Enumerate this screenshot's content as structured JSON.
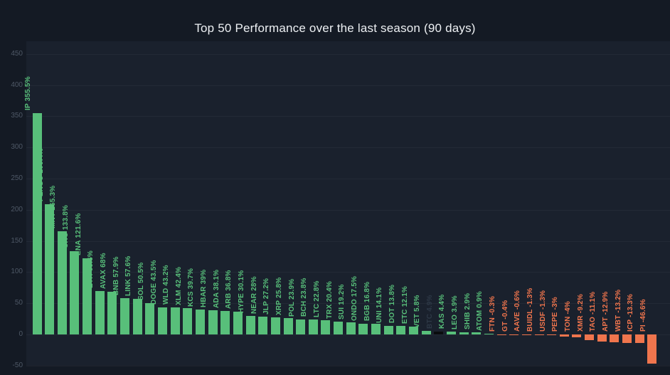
{
  "chart_data": {
    "type": "bar",
    "title": "Top 50 Performance over the last season (90 days)",
    "xlabel": "",
    "ylabel": "",
    "unit": "%",
    "ylim": [
      -50,
      450
    ],
    "yticks": [
      450,
      400,
      350,
      300,
      250,
      200,
      150,
      100,
      50,
      0,
      -50
    ],
    "grid": "horizontal-faint",
    "legend": "none",
    "palette": {
      "positive": "#58bf7a",
      "negative": "#f0754d",
      "btc_bar": "#0a0c0e",
      "btc_label": "#2d3846",
      "axis_label": "#4e5866",
      "title": "#edf0f3",
      "background_outer": "#141a24",
      "background_plot": "#1a212d"
    },
    "bars": [
      {
        "symbol": "IP",
        "value": 355.5
      },
      {
        "symbol": "PENGU",
        "value": 209.4
      },
      {
        "symbol": "MNT",
        "value": 165.3
      },
      {
        "symbol": "CRO",
        "value": 133.8
      },
      {
        "symbol": "ENA",
        "value": 121.6
      },
      {
        "symbol": "ETH",
        "value": 69.6
      },
      {
        "symbol": "AVAX",
        "value": 68
      },
      {
        "symbol": "BNB",
        "value": 57.9
      },
      {
        "symbol": "LINK",
        "value": 57.6
      },
      {
        "symbol": "SOL",
        "value": 50.5
      },
      {
        "symbol": "DOGE",
        "value": 43.5
      },
      {
        "symbol": "WLD",
        "value": 43.2
      },
      {
        "symbol": "XLM",
        "value": 42.4
      },
      {
        "symbol": "KCS",
        "value": 39.7
      },
      {
        "symbol": "HBAR",
        "value": 39
      },
      {
        "symbol": "ADA",
        "value": 38.1
      },
      {
        "symbol": "ARB",
        "value": 36.8
      },
      {
        "symbol": "HYPE",
        "value": 30.1
      },
      {
        "symbol": "NEAR",
        "value": 28
      },
      {
        "symbol": "JLP",
        "value": 27.2
      },
      {
        "symbol": "XRP",
        "value": 25.8
      },
      {
        "symbol": "POL",
        "value": 23.9
      },
      {
        "symbol": "BCH",
        "value": 23.8
      },
      {
        "symbol": "LTC",
        "value": 22.8
      },
      {
        "symbol": "TRX",
        "value": 20.4
      },
      {
        "symbol": "SUI",
        "value": 19.2
      },
      {
        "symbol": "ONDO",
        "value": 17.5
      },
      {
        "symbol": "BGB",
        "value": 16.8
      },
      {
        "symbol": "UNI",
        "value": 14.1
      },
      {
        "symbol": "DOT",
        "value": 13.8
      },
      {
        "symbol": "ETC",
        "value": 12.1
      },
      {
        "symbol": "VET",
        "value": 5.8
      },
      {
        "symbol": "BTC",
        "value": 4.9,
        "highlight": "btc"
      },
      {
        "symbol": "KAS",
        "value": 4.4
      },
      {
        "symbol": "LEO",
        "value": 3.9
      },
      {
        "symbol": "SHIB",
        "value": 2.9
      },
      {
        "symbol": "ATOM",
        "value": 0.9
      },
      {
        "symbol": "FTN",
        "value": -0.3
      },
      {
        "symbol": "GT",
        "value": -0.4
      },
      {
        "symbol": "AAVE",
        "value": -0.6
      },
      {
        "symbol": "BUIDL",
        "value": -1.3
      },
      {
        "symbol": "USDF",
        "value": -1.3
      },
      {
        "symbol": "PEPE",
        "value": -3
      },
      {
        "symbol": "TON",
        "value": -4
      },
      {
        "symbol": "XMR",
        "value": -9.2
      },
      {
        "symbol": "TAO",
        "value": -11.1
      },
      {
        "symbol": "APT",
        "value": -12.9
      },
      {
        "symbol": "WBT",
        "value": -13.2
      },
      {
        "symbol": "ICP",
        "value": -13.3
      },
      {
        "symbol": "PI",
        "value": -46.6
      }
    ]
  }
}
